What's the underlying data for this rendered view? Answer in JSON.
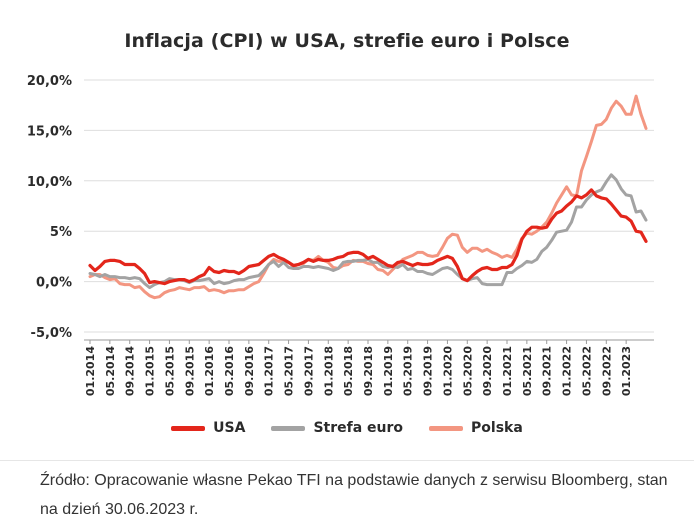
{
  "chart_data": {
    "type": "line",
    "title": "Inflacja (CPI) w USA, strefie euro i Polsce",
    "ylim": [
      -5,
      20
    ],
    "yticks": [
      "20,0%",
      "15,0%",
      "10,0%",
      "5%",
      "0,0%",
      "-5,0%"
    ],
    "ytick_values": [
      20,
      15,
      10,
      5,
      0,
      -5
    ],
    "x_labels": [
      "01.2014",
      "05.2014",
      "09.2014",
      "01.2015",
      "05.2015",
      "09.2015",
      "01.2016",
      "05.2016",
      "09.2016",
      "01.2017",
      "05.2017",
      "09.2017",
      "01.2018",
      "05.2018",
      "09.2018",
      "01.2019",
      "05.2019",
      "09.2019",
      "01.2020",
      "05.2020",
      "09.2020",
      "01.2021",
      "05.2021",
      "09.2021",
      "01.2022",
      "05.2022",
      "09.2022",
      "01.2023"
    ],
    "x_start": "01.2014",
    "x_end": "05.2023",
    "legend_position": "bottom",
    "grid": true,
    "series": [
      {
        "name": "USA",
        "color": "#e3261b",
        "values": [
          1.6,
          1.1,
          1.5,
          2.0,
          2.1,
          2.1,
          2.0,
          1.7,
          1.7,
          1.7,
          1.3,
          0.8,
          -0.1,
          0.0,
          -0.1,
          -0.2,
          0.0,
          0.1,
          0.2,
          0.2,
          0.0,
          0.2,
          0.5,
          0.7,
          1.4,
          1.0,
          0.9,
          1.1,
          1.0,
          1.0,
          0.8,
          1.1,
          1.5,
          1.6,
          1.7,
          2.1,
          2.5,
          2.7,
          2.4,
          2.2,
          1.9,
          1.6,
          1.7,
          1.9,
          2.2,
          2.0,
          2.2,
          2.1,
          2.1,
          2.2,
          2.4,
          2.5,
          2.8,
          2.9,
          2.9,
          2.7,
          2.3,
          2.5,
          2.2,
          1.9,
          1.6,
          1.5,
          1.9,
          2.0,
          1.8,
          1.6,
          1.8,
          1.7,
          1.7,
          1.8,
          2.1,
          2.3,
          2.5,
          2.3,
          1.5,
          0.3,
          0.1,
          0.6,
          1.0,
          1.3,
          1.4,
          1.2,
          1.2,
          1.4,
          1.4,
          1.7,
          2.6,
          4.2,
          5.0,
          5.4,
          5.4,
          5.3,
          5.4,
          6.2,
          6.8,
          7.0,
          7.5,
          7.9,
          8.5,
          8.3,
          8.6,
          9.1,
          8.5,
          8.3,
          8.2,
          7.7,
          7.1,
          6.5,
          6.4,
          6.0,
          5.0,
          4.9,
          4.0
        ]
      },
      {
        "name": "Strefa euro",
        "color": "#a3a3a3",
        "values": [
          0.8,
          0.7,
          0.5,
          0.7,
          0.5,
          0.5,
          0.4,
          0.4,
          0.3,
          0.4,
          0.3,
          -0.2,
          -0.6,
          -0.3,
          -0.1,
          0.0,
          0.3,
          0.2,
          0.2,
          0.1,
          -0.1,
          0.1,
          0.1,
          0.2,
          0.3,
          -0.2,
          0.0,
          -0.2,
          -0.1,
          0.1,
          0.2,
          0.2,
          0.4,
          0.5,
          0.6,
          1.1,
          1.7,
          2.0,
          1.5,
          1.9,
          1.4,
          1.3,
          1.3,
          1.5,
          1.5,
          1.4,
          1.5,
          1.4,
          1.3,
          1.1,
          1.3,
          1.9,
          2.0,
          2.0,
          2.1,
          2.1,
          2.2,
          1.9,
          1.9,
          1.5,
          1.4,
          1.5,
          1.4,
          1.7,
          1.2,
          1.3,
          1.0,
          1.0,
          0.8,
          0.7,
          1.0,
          1.3,
          1.4,
          1.2,
          0.7,
          0.3,
          0.1,
          0.3,
          0.4,
          -0.2,
          -0.3,
          -0.3,
          -0.3,
          -0.3,
          0.9,
          0.9,
          1.3,
          1.6,
          2.0,
          1.9,
          2.2,
          3.0,
          3.4,
          4.1,
          4.9,
          5.0,
          5.1,
          5.9,
          7.4,
          7.4,
          8.1,
          8.6,
          8.9,
          9.1,
          9.9,
          10.6,
          10.1,
          9.2,
          8.6,
          8.5,
          6.9,
          7.0,
          6.1
        ]
      },
      {
        "name": "Polska",
        "color": "#f39681",
        "values": [
          0.5,
          0.7,
          0.7,
          0.4,
          0.2,
          0.3,
          -0.2,
          -0.3,
          -0.3,
          -0.6,
          -0.5,
          -1.0,
          -1.4,
          -1.6,
          -1.5,
          -1.1,
          -0.9,
          -0.8,
          -0.6,
          -0.7,
          -0.8,
          -0.6,
          -0.6,
          -0.5,
          -0.9,
          -0.8,
          -0.9,
          -1.1,
          -0.9,
          -0.9,
          -0.8,
          -0.8,
          -0.5,
          -0.2,
          0.0,
          0.8,
          1.7,
          2.2,
          2.0,
          2.0,
          1.9,
          1.5,
          1.7,
          1.8,
          2.2,
          2.1,
          2.5,
          2.1,
          1.9,
          1.4,
          1.3,
          1.6,
          1.7,
          2.1,
          2.0,
          2.0,
          1.8,
          1.7,
          1.2,
          1.1,
          0.7,
          1.2,
          1.7,
          2.2,
          2.4,
          2.6,
          2.9,
          2.9,
          2.6,
          2.5,
          2.6,
          3.4,
          4.3,
          4.7,
          4.6,
          3.4,
          2.9,
          3.3,
          3.3,
          3.0,
          3.2,
          2.9,
          2.7,
          2.4,
          2.6,
          2.4,
          3.2,
          4.3,
          4.8,
          4.7,
          5.0,
          5.4,
          5.9,
          6.8,
          7.8,
          8.6,
          9.4,
          8.6,
          8.5,
          11.0,
          12.4,
          13.9,
          15.5,
          15.6,
          16.1,
          17.2,
          17.9,
          17.4,
          16.6,
          16.6,
          18.4,
          16.6,
          15.2
        ]
      }
    ]
  },
  "legend": {
    "items": [
      {
        "label": "USA",
        "color": "#e3261b"
      },
      {
        "label": "Strefa euro",
        "color": "#a3a3a3"
      },
      {
        "label": "Polska",
        "color": "#f39681"
      }
    ]
  },
  "source": {
    "text": "Źródło: Opracowanie własne Pekao TFI na podstawie danych z serwisu Bloomberg, stan na dzień 30.06.2023 r."
  }
}
